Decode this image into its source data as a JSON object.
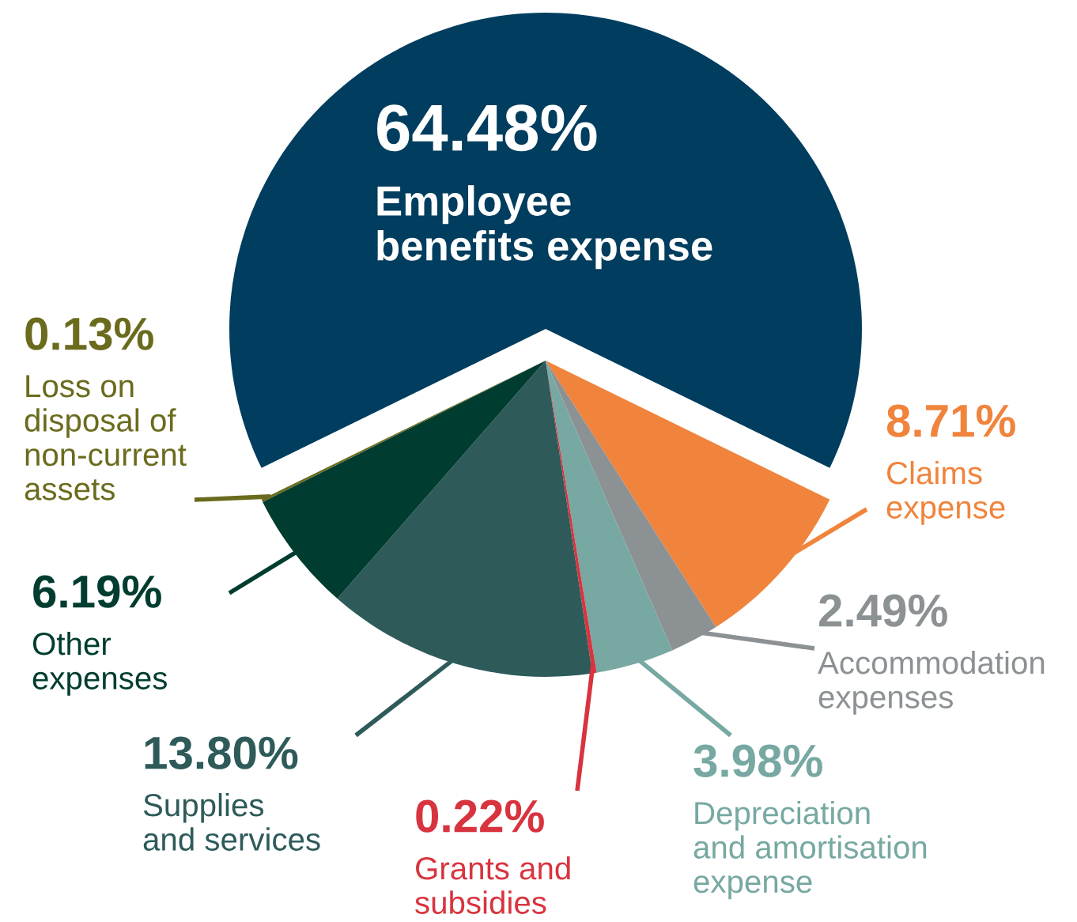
{
  "chart_data": {
    "type": "pie",
    "categories": [
      "Employee\nbenefits expense",
      "Claims\nexpense",
      "Accommodation\nexpenses",
      "Depreciation\nand amortisation\nexpense",
      "Grants and\nsubsidies",
      "Supplies\nand services",
      "Other\nexpenses",
      "Loss on\ndisposal of\nnon-current\nassets"
    ],
    "values": [
      64.48,
      8.71,
      2.49,
      3.98,
      0.22,
      13.8,
      6.19,
      0.13
    ],
    "colors": [
      "#003d5e",
      "#f0843c",
      "#8c9194",
      "#77a8a2",
      "#d8343f",
      "#2e5a5a",
      "#003d30",
      "#6b6b1e"
    ],
    "value_labels": [
      "64.48%",
      "8.71%",
      "2.49%",
      "3.98%",
      "0.22%",
      "13.80%",
      "6.19%",
      "0.13%"
    ]
  }
}
